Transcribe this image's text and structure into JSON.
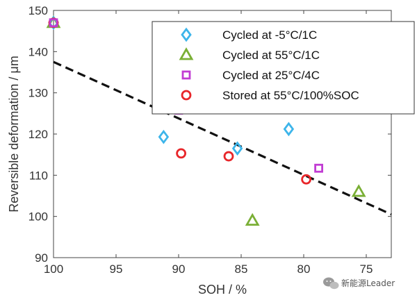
{
  "chart_data": {
    "type": "scatter",
    "xlabel": "SOH / %",
    "ylabel": "Reversible deformation / μm",
    "xlim": [
      100,
      73
    ],
    "x_reversed": true,
    "ylim": [
      90,
      150
    ],
    "x_ticks": [
      100,
      95,
      90,
      85,
      80,
      75
    ],
    "y_ticks": [
      90,
      100,
      110,
      120,
      130,
      140,
      150
    ],
    "grid": false,
    "legend_position": "top-right",
    "series": [
      {
        "name": "Cycled at -5°C/1C",
        "marker": "diamond",
        "color": "#3db5ea",
        "points": [
          [
            100,
            147
          ],
          [
            91.2,
            119.3
          ],
          [
            85.3,
            116.5
          ],
          [
            81.2,
            121.2
          ]
        ]
      },
      {
        "name": "Cycled at 55°C/1C",
        "marker": "triangle",
        "color": "#7aaf35",
        "points": [
          [
            100,
            147
          ],
          [
            90,
            126.2
          ],
          [
            84.1,
            99
          ],
          [
            75.6,
            106
          ]
        ]
      },
      {
        "name": "Cycled at 25°C/4C",
        "marker": "square",
        "color": "#c13cd3",
        "points": [
          [
            100,
            147
          ],
          [
            90,
            125.8
          ],
          [
            78.8,
            111.7
          ]
        ]
      },
      {
        "name": "Stored at 55°C/100%SOC",
        "marker": "circle",
        "color": "#e8262a",
        "points": [
          [
            100,
            147
          ],
          [
            89.8,
            115.3
          ],
          [
            86,
            114.6
          ],
          [
            79.8,
            109
          ]
        ]
      }
    ],
    "trendline": {
      "style": "dashed",
      "color": "#111111",
      "points": [
        [
          100,
          137.5
        ],
        [
          73,
          100.5
        ]
      ]
    }
  },
  "watermark": {
    "icon": "wechat-icon",
    "text": "新能源Leader"
  }
}
